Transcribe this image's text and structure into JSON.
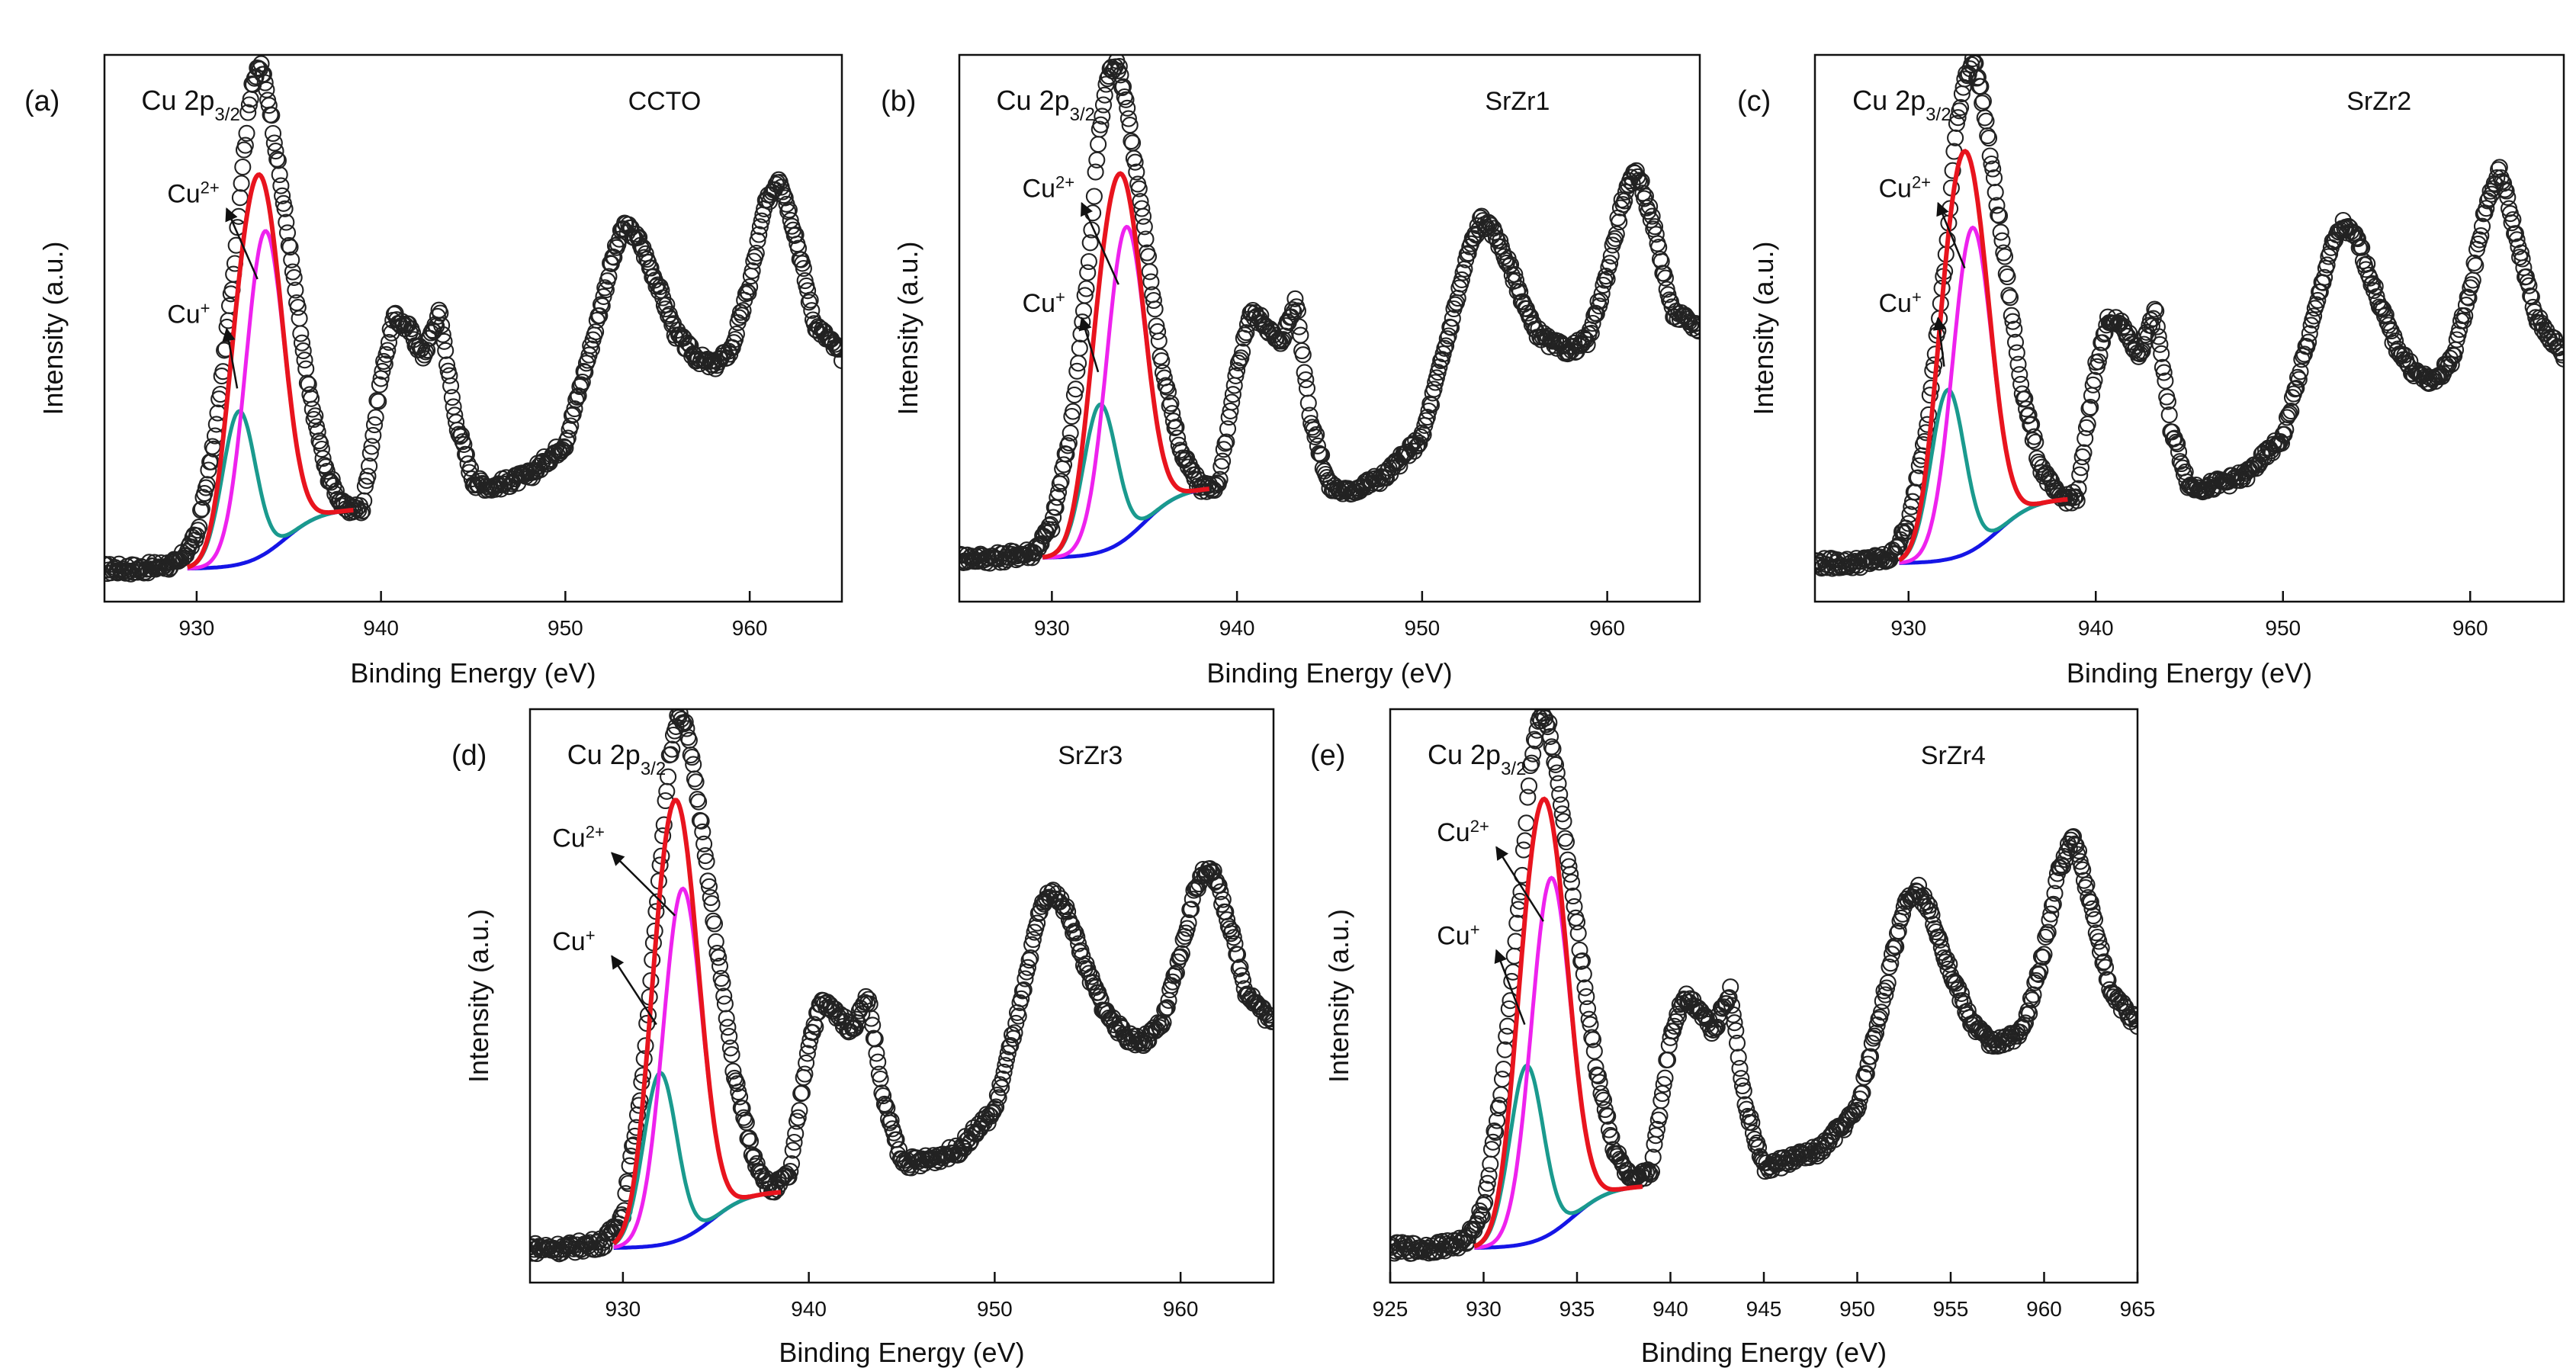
{
  "figure": {
    "panel_letters": [
      "(a)",
      "(b)",
      "(c)",
      "(d)",
      "(e)"
    ]
  },
  "colors": {
    "envelope": "#e8141e",
    "cu2_component": "#ee22ee",
    "cu1_component": "#1a9a8e",
    "background": "#1515e6",
    "data_marker": "#222222",
    "axes": "#111111"
  },
  "chart_data": [
    {
      "panel": "(a)",
      "sample": "CCTO",
      "type": "scatter",
      "title_main": "Cu 2p",
      "title_sub": "3/2",
      "xlabel": "Binding Energy (eV)",
      "ylabel": "Intensity (a.u.)",
      "xlim": [
        925,
        965
      ],
      "ylim": [
        0,
        1
      ],
      "x_ticks": [
        930,
        940,
        950,
        960
      ],
      "x_tick_labels": [
        "930",
        "940",
        "950",
        "960"
      ],
      "series": [
        {
          "name": "Experimental data",
          "style": "open circles",
          "x": [
            925,
            927,
            929,
            930,
            931,
            932,
            932.5,
            933,
            933.5,
            934,
            935,
            936,
            937,
            938,
            939,
            940,
            940.7,
            941.5,
            942.3,
            943.2,
            944,
            945,
            946,
            948,
            950,
            951.5,
            952.5,
            953.2,
            954,
            955,
            956,
            957,
            958,
            959,
            960,
            960.8,
            961.6,
            962.5,
            963.5,
            965
          ],
          "y": [
            0.06,
            0.06,
            0.07,
            0.12,
            0.3,
            0.6,
            0.8,
            0.95,
            0.98,
            0.9,
            0.66,
            0.4,
            0.24,
            0.17,
            0.17,
            0.41,
            0.52,
            0.5,
            0.45,
            0.53,
            0.34,
            0.22,
            0.21,
            0.23,
            0.29,
            0.48,
            0.62,
            0.69,
            0.66,
            0.58,
            0.49,
            0.45,
            0.43,
            0.46,
            0.58,
            0.72,
            0.78,
            0.67,
            0.51,
            0.45
          ]
        },
        {
          "name": "Envelope fit",
          "curve": {
            "type": "sum",
            "x0": 929.5,
            "x1": 938.5
          }
        },
        {
          "name": "Cu2+",
          "curve": {
            "type": "gauss",
            "center": 933.7,
            "height": 0.59,
            "sigma": 1.05,
            "x0": 929.5,
            "x1": 937.5
          }
        },
        {
          "name": "Cu+",
          "curve": {
            "type": "gauss",
            "center": 932.3,
            "height": 0.28,
            "sigma": 0.9,
            "x0": 929.5,
            "x1": 937.5
          }
        },
        {
          "name": "Background",
          "curve": {
            "type": "shirley",
            "low": 0.06,
            "high": 0.17,
            "mid": 934.8,
            "width": 1.0,
            "x0": 929.5,
            "x1": 938.3
          }
        }
      ],
      "annotations": [
        {
          "text": "Cu",
          "sup": "2+",
          "label_x": 928.4,
          "label_y": 0.73,
          "arrow_x": 933.3,
          "arrow_y": 0.59
        },
        {
          "text": "Cu",
          "sup": "+",
          "label_x": 928.4,
          "label_y": 0.51,
          "arrow_x": 932.2,
          "arrow_y": 0.39
        }
      ]
    },
    {
      "panel": "(b)",
      "sample": "SrZr1",
      "type": "scatter",
      "title_main": "Cu 2p",
      "title_sub": "3/2",
      "xlabel": "Binding Energy (eV)",
      "ylabel": "Intensity (a.u.)",
      "xlim": [
        925,
        965
      ],
      "ylim": [
        0,
        1
      ],
      "x_ticks": [
        930,
        940,
        950,
        960
      ],
      "x_tick_labels": [
        "930",
        "940",
        "950",
        "960"
      ],
      "series": [
        {
          "name": "Experimental data",
          "style": "open circles",
          "x": [
            925,
            927,
            929,
            930,
            931,
            932,
            932.5,
            933,
            933.5,
            934,
            935,
            936,
            937,
            938,
            939,
            940,
            940.7,
            941.5,
            942.3,
            943.2,
            944,
            945,
            946,
            948,
            950,
            951.5,
            952.5,
            953.2,
            954,
            955,
            956,
            957,
            958,
            959,
            960,
            960.8,
            961.6,
            962.5,
            963.5,
            965
          ],
          "y": [
            0.08,
            0.08,
            0.09,
            0.14,
            0.31,
            0.62,
            0.84,
            0.96,
            0.99,
            0.92,
            0.68,
            0.42,
            0.27,
            0.21,
            0.21,
            0.42,
            0.53,
            0.51,
            0.47,
            0.55,
            0.33,
            0.21,
            0.2,
            0.23,
            0.3,
            0.5,
            0.64,
            0.7,
            0.67,
            0.59,
            0.5,
            0.47,
            0.46,
            0.48,
            0.6,
            0.73,
            0.79,
            0.69,
            0.53,
            0.5
          ]
        },
        {
          "name": "Envelope fit",
          "curve": {
            "type": "sum",
            "x0": 929.5,
            "x1": 938.5
          }
        },
        {
          "name": "Cu2+",
          "curve": {
            "type": "gauss",
            "center": 934.0,
            "height": 0.57,
            "sigma": 1.05,
            "x0": 929.5,
            "x1": 937.5
          }
        },
        {
          "name": "Cu+",
          "curve": {
            "type": "gauss",
            "center": 932.6,
            "height": 0.27,
            "sigma": 0.9,
            "x0": 929.5,
            "x1": 937.5
          }
        },
        {
          "name": "Background",
          "curve": {
            "type": "shirley",
            "low": 0.08,
            "high": 0.21,
            "mid": 935.0,
            "width": 1.0,
            "x0": 929.5,
            "x1": 938.3
          }
        }
      ],
      "annotations": [
        {
          "text": "Cu",
          "sup": "2+",
          "label_x": 928.4,
          "label_y": 0.74,
          "arrow_x": 933.6,
          "arrow_y": 0.58
        },
        {
          "text": "Cu",
          "sup": "+",
          "label_x": 928.4,
          "label_y": 0.53,
          "arrow_x": 932.5,
          "arrow_y": 0.42
        }
      ]
    },
    {
      "panel": "(c)",
      "sample": "SrZr2",
      "type": "scatter",
      "title_main": "Cu 2p",
      "title_sub": "3/2",
      "xlabel": "Binding Energy (eV)",
      "ylabel": "Intensity (a.u.)",
      "xlim": [
        925,
        965
      ],
      "ylim": [
        0,
        1
      ],
      "x_ticks": [
        930,
        940,
        950,
        960
      ],
      "x_tick_labels": [
        "930",
        "940",
        "950",
        "960"
      ],
      "series": [
        {
          "name": "Experimental data",
          "style": "open circles",
          "x": [
            925,
            927,
            929,
            930,
            931,
            932,
            932.5,
            933,
            933.5,
            934,
            935,
            936,
            937,
            938,
            939,
            940,
            940.7,
            941.5,
            942.3,
            943.2,
            944,
            945,
            946,
            948,
            950,
            951.5,
            952.5,
            953.2,
            954,
            955,
            956,
            957,
            958,
            959,
            960,
            960.8,
            961.6,
            962.5,
            963.5,
            965
          ],
          "y": [
            0.07,
            0.07,
            0.08,
            0.14,
            0.33,
            0.63,
            0.85,
            0.96,
            0.99,
            0.91,
            0.66,
            0.4,
            0.25,
            0.19,
            0.19,
            0.43,
            0.52,
            0.5,
            0.45,
            0.53,
            0.32,
            0.21,
            0.21,
            0.23,
            0.3,
            0.5,
            0.64,
            0.69,
            0.66,
            0.56,
            0.47,
            0.42,
            0.4,
            0.44,
            0.57,
            0.72,
            0.79,
            0.66,
            0.52,
            0.45
          ]
        },
        {
          "name": "Envelope fit",
          "curve": {
            "type": "sum",
            "x0": 929.5,
            "x1": 938.5
          }
        },
        {
          "name": "Cu2+",
          "curve": {
            "type": "gauss",
            "center": 933.4,
            "height": 0.59,
            "sigma": 1.05,
            "x0": 929.5,
            "x1": 937.5
          }
        },
        {
          "name": "Cu+",
          "curve": {
            "type": "gauss",
            "center": 932.1,
            "height": 0.31,
            "sigma": 0.9,
            "x0": 929.5,
            "x1": 937.5
          }
        },
        {
          "name": "Background",
          "curve": {
            "type": "shirley",
            "low": 0.07,
            "high": 0.19,
            "mid": 934.8,
            "width": 1.0,
            "x0": 929.5,
            "x1": 938.3
          }
        }
      ],
      "annotations": [
        {
          "text": "Cu",
          "sup": "2+",
          "label_x": 928.4,
          "label_y": 0.74,
          "arrow_x": 933.0,
          "arrow_y": 0.61
        },
        {
          "text": "Cu",
          "sup": "+",
          "label_x": 928.4,
          "label_y": 0.53,
          "arrow_x": 931.9,
          "arrow_y": 0.43
        }
      ]
    },
    {
      "panel": "(d)",
      "sample": "SrZr3",
      "type": "scatter",
      "title_main": "Cu 2p",
      "title_sub": "3/2",
      "xlabel": "Binding Energy (eV)",
      "ylabel": "Intensity (a.u.)",
      "xlim": [
        925,
        965
      ],
      "ylim": [
        0,
        1
      ],
      "x_ticks": [
        930,
        940,
        950,
        960
      ],
      "x_tick_labels": [
        "930",
        "940",
        "950",
        "960"
      ],
      "series": [
        {
          "name": "Experimental data",
          "style": "open circles",
          "x": [
            925,
            927,
            929,
            930,
            931,
            932,
            932.5,
            933,
            933.5,
            934,
            935,
            936,
            937,
            938,
            939,
            940,
            940.7,
            941.5,
            942.3,
            943.2,
            944,
            945,
            946,
            948,
            950,
            951.5,
            952.5,
            953.2,
            954,
            955,
            956,
            957,
            958,
            959,
            960,
            960.8,
            961.6,
            962.5,
            963.5,
            965
          ],
          "y": [
            0.06,
            0.06,
            0.07,
            0.12,
            0.34,
            0.72,
            0.92,
            0.99,
            0.96,
            0.85,
            0.6,
            0.36,
            0.22,
            0.16,
            0.19,
            0.42,
            0.49,
            0.47,
            0.44,
            0.5,
            0.32,
            0.21,
            0.21,
            0.23,
            0.3,
            0.5,
            0.66,
            0.68,
            0.64,
            0.54,
            0.47,
            0.43,
            0.42,
            0.45,
            0.57,
            0.69,
            0.73,
            0.64,
            0.51,
            0.45
          ]
        },
        {
          "name": "Envelope fit",
          "curve": {
            "type": "sum",
            "x0": 929.5,
            "x1": 938.5
          }
        },
        {
          "name": "Cu2+",
          "curve": {
            "type": "gauss",
            "center": 933.2,
            "height": 0.61,
            "sigma": 1.05,
            "x0": 929.5,
            "x1": 937.5
          }
        },
        {
          "name": "Cu+",
          "curve": {
            "type": "gauss",
            "center": 932.0,
            "height": 0.3,
            "sigma": 0.9,
            "x0": 929.5,
            "x1": 937.5
          }
        },
        {
          "name": "Background",
          "curve": {
            "type": "shirley",
            "low": 0.06,
            "high": 0.16,
            "mid": 934.8,
            "width": 1.0,
            "x0": 929.5,
            "x1": 938.3
          }
        }
      ],
      "annotations": [
        {
          "text": "Cu",
          "sup": "2+",
          "label_x": 926.2,
          "label_y": 0.76,
          "arrow_x": 932.8,
          "arrow_y": 0.64
        },
        {
          "text": "Cu",
          "sup": "+",
          "label_x": 926.2,
          "label_y": 0.58,
          "arrow_x": 931.8,
          "arrow_y": 0.45
        }
      ]
    },
    {
      "panel": "(e)",
      "sample": "SrZr4",
      "type": "scatter",
      "title_main": "Cu 2p",
      "title_sub": "3/2",
      "xlabel": "Binding Energy (eV)",
      "ylabel": "Intensity (a.u.)",
      "xlim": [
        925,
        965
      ],
      "ylim": [
        0,
        1
      ],
      "x_ticks": [
        925,
        930,
        935,
        940,
        945,
        950,
        955,
        960,
        965
      ],
      "x_tick_labels": [
        "925",
        "930",
        "935",
        "940",
        "945",
        "950",
        "955",
        "960",
        "965"
      ],
      "series": [
        {
          "name": "Experimental data",
          "style": "open circles",
          "x": [
            925,
            927,
            929,
            930,
            931,
            932,
            932.5,
            933,
            933.5,
            934,
            935,
            936,
            937,
            938,
            939,
            940,
            940.7,
            941.5,
            942.3,
            943.2,
            944,
            945,
            946,
            948,
            950,
            951.5,
            952.5,
            953.2,
            954,
            955,
            956,
            957,
            958,
            959,
            960,
            960.8,
            961.6,
            962.5,
            963.5,
            965
          ],
          "y": [
            0.06,
            0.06,
            0.07,
            0.13,
            0.35,
            0.69,
            0.9,
            0.99,
            0.97,
            0.87,
            0.62,
            0.38,
            0.23,
            0.17,
            0.2,
            0.43,
            0.5,
            0.48,
            0.44,
            0.51,
            0.31,
            0.2,
            0.21,
            0.23,
            0.3,
            0.51,
            0.66,
            0.69,
            0.64,
            0.54,
            0.46,
            0.42,
            0.42,
            0.45,
            0.58,
            0.72,
            0.78,
            0.66,
            0.51,
            0.45
          ]
        },
        {
          "name": "Envelope fit",
          "curve": {
            "type": "sum",
            "x0": 929.5,
            "x1": 938.5
          }
        },
        {
          "name": "Cu2+",
          "curve": {
            "type": "gauss",
            "center": 933.6,
            "height": 0.62,
            "sigma": 1.05,
            "x0": 929.5,
            "x1": 937.5
          }
        },
        {
          "name": "Cu+",
          "curve": {
            "type": "gauss",
            "center": 932.3,
            "height": 0.31,
            "sigma": 0.9,
            "x0": 929.5,
            "x1": 937.5
          }
        },
        {
          "name": "Background",
          "curve": {
            "type": "shirley",
            "low": 0.06,
            "high": 0.17,
            "mid": 934.8,
            "width": 1.0,
            "x0": 929.5,
            "x1": 938.3
          }
        }
      ],
      "annotations": [
        {
          "text": "Cu",
          "sup": "2+",
          "label_x": 927.5,
          "label_y": 0.77,
          "arrow_x": 933.2,
          "arrow_y": 0.63
        },
        {
          "text": "Cu",
          "sup": "+",
          "label_x": 927.5,
          "label_y": 0.59,
          "arrow_x": 932.2,
          "arrow_y": 0.45
        }
      ]
    }
  ]
}
